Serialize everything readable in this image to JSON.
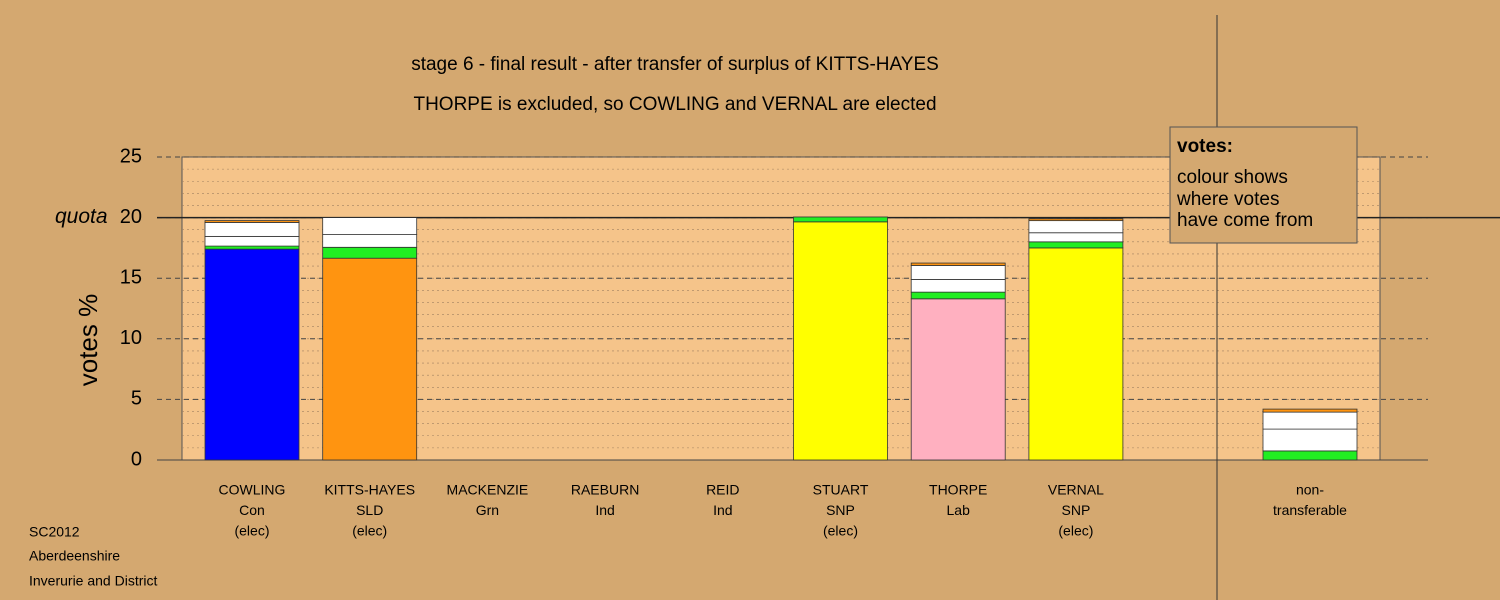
{
  "chart_data": {
    "type": "stacked_bar",
    "title": "stage 6 - final result - after transfer of surplus of KITTS-HAYES",
    "subtitle": "THORPE is excluded, so COWLING and VERNAL are elected",
    "y_label": "votes %",
    "categories": [
      [
        "COWLING",
        "Con",
        "(elec)"
      ],
      [
        "KITTS-HAYES",
        "SLD",
        "(elec)"
      ],
      [
        "MACKENZIE",
        "Grn"
      ],
      [
        "RAEBURN",
        "Ind"
      ],
      [
        "REID",
        "Ind"
      ],
      [
        "STUART",
        "SNP",
        "(elec)"
      ],
      [
        "THORPE",
        "Lab"
      ],
      [
        "VERNAL",
        "SNP",
        "(elec)"
      ],
      [
        "non-",
        "transferable"
      ]
    ],
    "series": [
      {
        "color": "#0000ff",
        "values": [
          17.4,
          null,
          null,
          null,
          null,
          null,
          null,
          null,
          null
        ]
      },
      {
        "color": "#ff9410",
        "values": [
          null,
          16.65,
          null,
          null,
          null,
          null,
          null,
          null,
          null
        ]
      },
      {
        "color": "#ffff00",
        "values": [
          null,
          null,
          null,
          null,
          null,
          19.65,
          null,
          17.5,
          null
        ]
      },
      {
        "color": "#ffb0c0",
        "values": [
          null,
          null,
          null,
          null,
          null,
          null,
          13.3,
          null,
          null
        ]
      },
      {
        "color": "#22ee22",
        "values": [
          0.25,
          0.9,
          null,
          null,
          null,
          0.4,
          0.55,
          0.5,
          0.75
        ]
      },
      {
        "color": "#ffffff",
        "values": [
          0.8,
          1.05,
          null,
          null,
          null,
          null,
          1.05,
          0.75,
          1.8
        ]
      },
      {
        "color": "#ffffff",
        "values": [
          1.15,
          1.4,
          null,
          null,
          null,
          null,
          1.15,
          1.0,
          1.4
        ]
      },
      {
        "color": "#ff9410",
        "values": [
          0.15,
          null,
          null,
          null,
          null,
          null,
          0.2,
          0.15,
          0.25
        ]
      }
    ],
    "ylim": [
      0,
      25
    ],
    "yticks": [
      0,
      5,
      10,
      15,
      20,
      25
    ],
    "minor_step": 1,
    "quota": {
      "value": 20,
      "label": "quota"
    },
    "legend": {
      "title": "votes:",
      "lines": [
        "colour shows",
        "where votes",
        "have come from"
      ]
    },
    "footer": [
      "SC2012",
      "Aberdeenshire",
      "Inverurie and District"
    ]
  }
}
